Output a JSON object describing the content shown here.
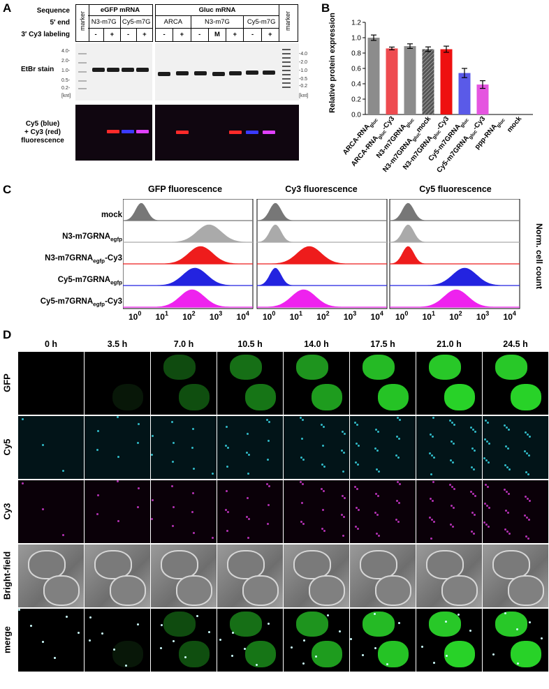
{
  "panels": {
    "A": "A",
    "B": "B",
    "C": "C",
    "D": "D"
  },
  "gel": {
    "row_labels": {
      "sequence": "Sequence",
      "end5": "5′ end",
      "cy3": "3′ Cy3 labeling"
    },
    "marker": "marker",
    "egfp_header": "eGFP mRNA",
    "gluc_header": "Gluc mRNA",
    "egfp_groups": [
      "N3-m7G",
      "Cy5-m7G"
    ],
    "gluc_groups": [
      "ARCA",
      "N3-m7G",
      "Cy5-m7G"
    ],
    "egfp_signs": [
      "-",
      "+",
      "-",
      "+"
    ],
    "gluc_signs": [
      "-",
      "+",
      "-",
      "M",
      "+",
      "-",
      "+"
    ],
    "left_ladder": [
      "4.0-",
      "2.0-",
      "1.0-",
      "0.5-",
      "0.2-",
      "[knt]"
    ],
    "right_ladder": [
      "-4.0",
      "-2.0",
      "-1.0",
      "-0.5",
      "-0.2",
      "[knt]"
    ],
    "etbr": "EtBr stain",
    "fluor_label": [
      "Cy5 (blue)",
      "+ Cy3 (red)",
      "fluorescence"
    ]
  },
  "chart_data": {
    "type": "bar",
    "categories": [
      "ARCA-RNAgluc",
      "ARCA-RNAgluc-Cy3",
      "N3-m7GRNAgluc",
      "N3-m7GRNAgluc mock",
      "N3-m7GRNAgluc-Cy3",
      "Cy5-m7GRNAgluc",
      "Cy5-m7GRNAgluc-Cy3",
      "ppp-RNAgluc",
      "mock"
    ],
    "category_labels": [
      {
        "pre": "ARCA-RNA",
        "sub": "gluc",
        "post": ""
      },
      {
        "pre": "ARCA-RNA",
        "sub": "gluc",
        "post": "-Cy3"
      },
      {
        "pre": "N3-m7GRNA",
        "sub": "gluc",
        "post": ""
      },
      {
        "pre": "N3-m7GRNA",
        "sub": "gluc",
        "post": "mock"
      },
      {
        "pre": "N3-m7GRNA",
        "sub": "gluc",
        "post": "-Cy3"
      },
      {
        "pre": "Cy5-m7GRNA",
        "sub": "gluc",
        "post": ""
      },
      {
        "pre": "Cy5-m7GRNA",
        "sub": "gluc",
        "post": "-Cy3"
      },
      {
        "pre": "ppp-RNA",
        "sub": "gluc",
        "post": ""
      },
      {
        "pre": "mock",
        "sub": "",
        "post": ""
      }
    ],
    "values": [
      1.0,
      0.86,
      0.89,
      0.85,
      0.85,
      0.54,
      0.39,
      0.0,
      0.0
    ],
    "errors": [
      0.035,
      0.018,
      0.03,
      0.03,
      0.04,
      0.06,
      0.05,
      0,
      0
    ],
    "colors": [
      "#8c8c8c",
      "#ee4b50",
      "#8c8c8c",
      "hatch",
      "#ee1010",
      "#5a5ae8",
      "#e555e0",
      "#000",
      "#000"
    ],
    "ylabel": "Relative protein expression",
    "ylim": [
      0,
      1.2
    ],
    "yticks": [
      "0.0",
      "0.2",
      "0.4",
      "0.6",
      "0.8",
      "1.0",
      "1.2"
    ]
  },
  "flow": {
    "titles": [
      "GFP fluorescence",
      "Cy3 fluorescence",
      "Cy5 fluorescence"
    ],
    "rows": [
      {
        "pre": "mock",
        "sub": "",
        "post": "",
        "color": "#777777"
      },
      {
        "pre": "N3-m7GRNA",
        "sub": "egfp",
        "post": "",
        "color": "#aaaaaa"
      },
      {
        "pre": "N3-m7GRNA",
        "sub": "egfp",
        "post": "-Cy3",
        "color": "#ee1c1c"
      },
      {
        "pre": "Cy5-m7GRNA",
        "sub": "egfp",
        "post": "",
        "color": "#2323e0"
      },
      {
        "pre": "Cy5-m7GRNA",
        "sub": "egfp",
        "post": "-Cy3",
        "color": "#ee22ee"
      }
    ],
    "peaks": [
      [
        0.3,
        2.7,
        2.4,
        2.2,
        2.1
      ],
      [
        0.3,
        0.3,
        1.5,
        0.3,
        1.3
      ],
      [
        0.3,
        0.3,
        0.3,
        2.3,
        2.0
      ]
    ],
    "ylabel": "Norm. cell count",
    "xticks": [
      "10",
      "0",
      "10",
      "1",
      "10",
      "2",
      "10",
      "3",
      "10",
      "4"
    ]
  },
  "timelapse": {
    "times": [
      "0 h",
      "3.5 h",
      "7.0 h",
      "10.5 h",
      "14.0 h",
      "17.5 h",
      "21.0 h",
      "24.5 h"
    ],
    "channels": [
      "GFP",
      "Cy5",
      "Cy3",
      "Bright-field",
      "merge"
    ]
  }
}
